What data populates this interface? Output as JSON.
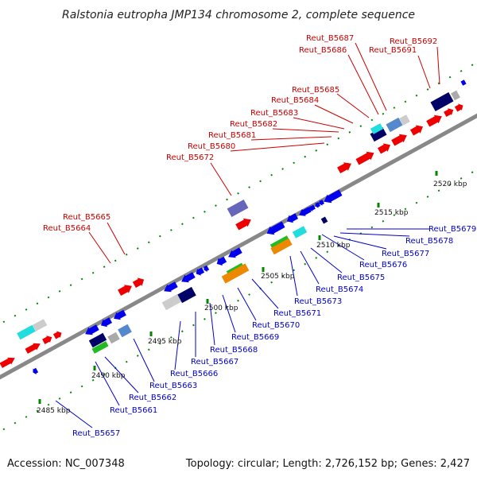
{
  "title": "Ralstonia eutropha JMP134 chromosome 2, complete sequence",
  "accession": "Accession: NC_007348",
  "topology": "Topology: circular; Length: 2,726,152 bp; Genes: 2,427",
  "colors": {
    "forward_gene": "#ee0000",
    "reverse_gene": "#0000ee",
    "forward_label": "#cc0000",
    "reverse_label": "#0000cc",
    "tick": "#008800",
    "axis": "#888888"
  },
  "scale_labels": [
    "2485 kbp",
    "2490 kbp",
    "2495 kbp",
    "2500 kbp",
    "2505 kbp",
    "2510 kbp",
    "2515 kbp",
    "2520 kbp"
  ],
  "forward_labels": [
    "Reut_B5664",
    "Reut_B5665",
    "Reut_B5672",
    "Reut_B5680",
    "Reut_B5681",
    "Reut_B5682",
    "Reut_B5683",
    "Reut_B5684",
    "Reut_B5685",
    "Reut_B5686",
    "Reut_B5687",
    "Reut_B5691",
    "Reut_B5692"
  ],
  "reverse_labels": [
    "Reut_B5657",
    "Reut_B5661",
    "Reut_B5662",
    "Reut_B5663",
    "Reut_B5666",
    "Reut_B5667",
    "Reut_B5668",
    "Reut_B5669",
    "Reut_B5670",
    "Reut_B5671",
    "Reut_B5673",
    "Reut_B5674",
    "Reut_B5675",
    "Reut_B5676",
    "Reut_B5677",
    "Reut_B5678",
    "Reut_B5679"
  ]
}
